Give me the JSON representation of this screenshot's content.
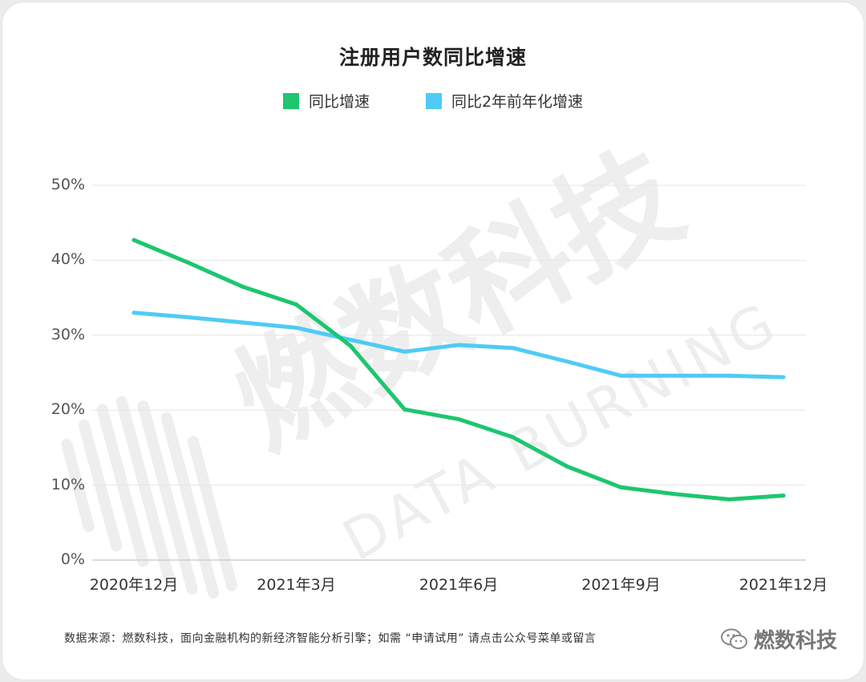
{
  "title": "注册用户数同比增速",
  "watermark": {
    "cn": "燃数科技",
    "en": "DATA BURNING"
  },
  "source": "数据来源：燃数科技，面向金融机构的新经济智能分析引擎；如需 “申请试用” 请点击公众号菜单或留言",
  "brand": {
    "name": "燃数科技",
    "icon": "wechat-icon"
  },
  "colors": {
    "series1": "#1dc66f",
    "series2": "#4fcbf5",
    "grid": "#e6e6e6",
    "axis": "#cfcfcf"
  },
  "chart_data": {
    "type": "line",
    "title": "注册用户数同比增速",
    "x_tick_labels": [
      "2020年12月",
      "2021年3月",
      "2021年6月",
      "2021年9月",
      "2021年12月"
    ],
    "x_tick_indices": [
      0,
      3,
      6,
      9,
      12
    ],
    "y_tick_labels": [
      "0%",
      "10%",
      "20%",
      "30%",
      "40%",
      "50%"
    ],
    "y_ticks": [
      0,
      10,
      20,
      30,
      40,
      50
    ],
    "ylim": [
      0,
      50
    ],
    "grid": true,
    "legend_position": "top-center",
    "x": [
      "2020-12",
      "2021-01",
      "2021-02",
      "2021-03",
      "2021-04",
      "2021-05",
      "2021-06",
      "2021-07",
      "2021-08",
      "2021-09",
      "2021-10",
      "2021-11",
      "2021-12"
    ],
    "series": [
      {
        "name": "同比增速",
        "color": "#1dc66f",
        "values": [
          42.7,
          39.7,
          36.5,
          34.1,
          28.6,
          20.1,
          18.8,
          16.4,
          12.5,
          9.7,
          8.8,
          8.1,
          8.6
        ]
      },
      {
        "name": "同比2年前年化增速",
        "color": "#4fcbf5",
        "values": [
          33.0,
          32.4,
          31.7,
          31.0,
          29.4,
          27.8,
          28.7,
          28.3,
          26.5,
          24.6,
          24.6,
          24.6,
          24.4
        ]
      }
    ]
  }
}
